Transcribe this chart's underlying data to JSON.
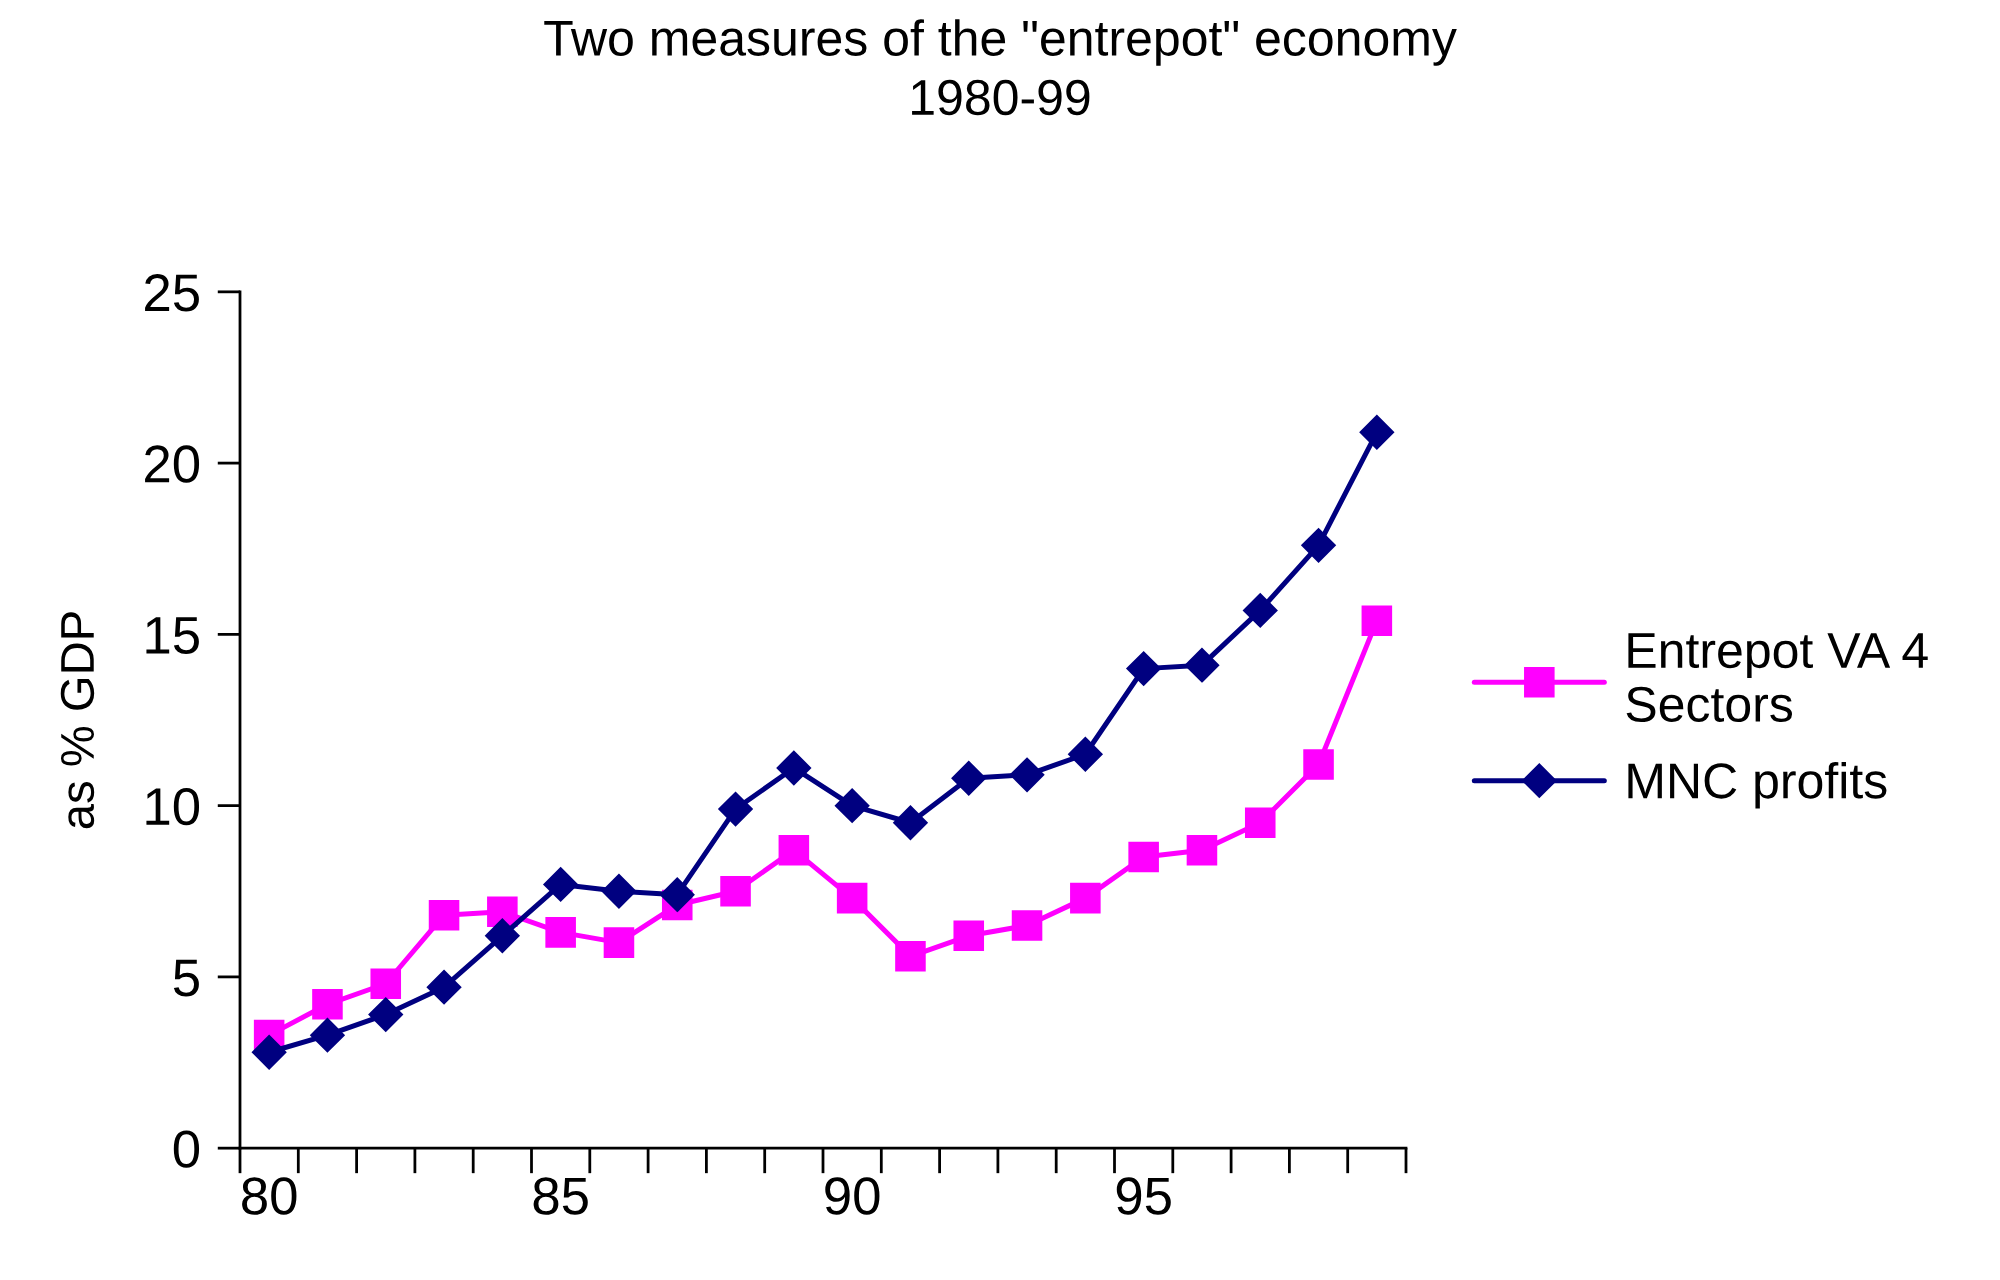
{
  "chart_data": {
    "type": "line",
    "title": "Two measures of the \"entrepot\" economy\n1980-99",
    "ylabel": "as % GDP",
    "categories": [
      "80",
      null,
      null,
      null,
      null,
      "85",
      null,
      null,
      null,
      null,
      "90",
      null,
      null,
      null,
      null,
      "95",
      null,
      null,
      null,
      null
    ],
    "series": [
      {
        "name": "Entrepot VA 4\nSectors",
        "color": "#ff00ff",
        "marker": "square",
        "values": [
          3.3,
          4.2,
          4.8,
          6.8,
          6.9,
          6.3,
          6.0,
          7.1,
          7.5,
          8.7,
          7.3,
          5.6,
          6.2,
          6.5,
          7.3,
          8.5,
          8.7,
          9.5,
          11.2,
          15.4
        ]
      },
      {
        "name": "MNC profits",
        "color": "#000080",
        "marker": "diamond",
        "values": [
          2.8,
          3.3,
          3.9,
          4.7,
          6.2,
          7.7,
          7.5,
          7.4,
          9.9,
          11.1,
          10.0,
          9.5,
          10.8,
          10.9,
          11.5,
          14.0,
          14.1,
          15.7,
          17.6,
          20.9
        ]
      }
    ],
    "ylim": [
      0,
      25
    ],
    "yticks": [
      0,
      5,
      10,
      15,
      20,
      25
    ],
    "grid": false,
    "legend": "right",
    "line_style": "solid"
  }
}
